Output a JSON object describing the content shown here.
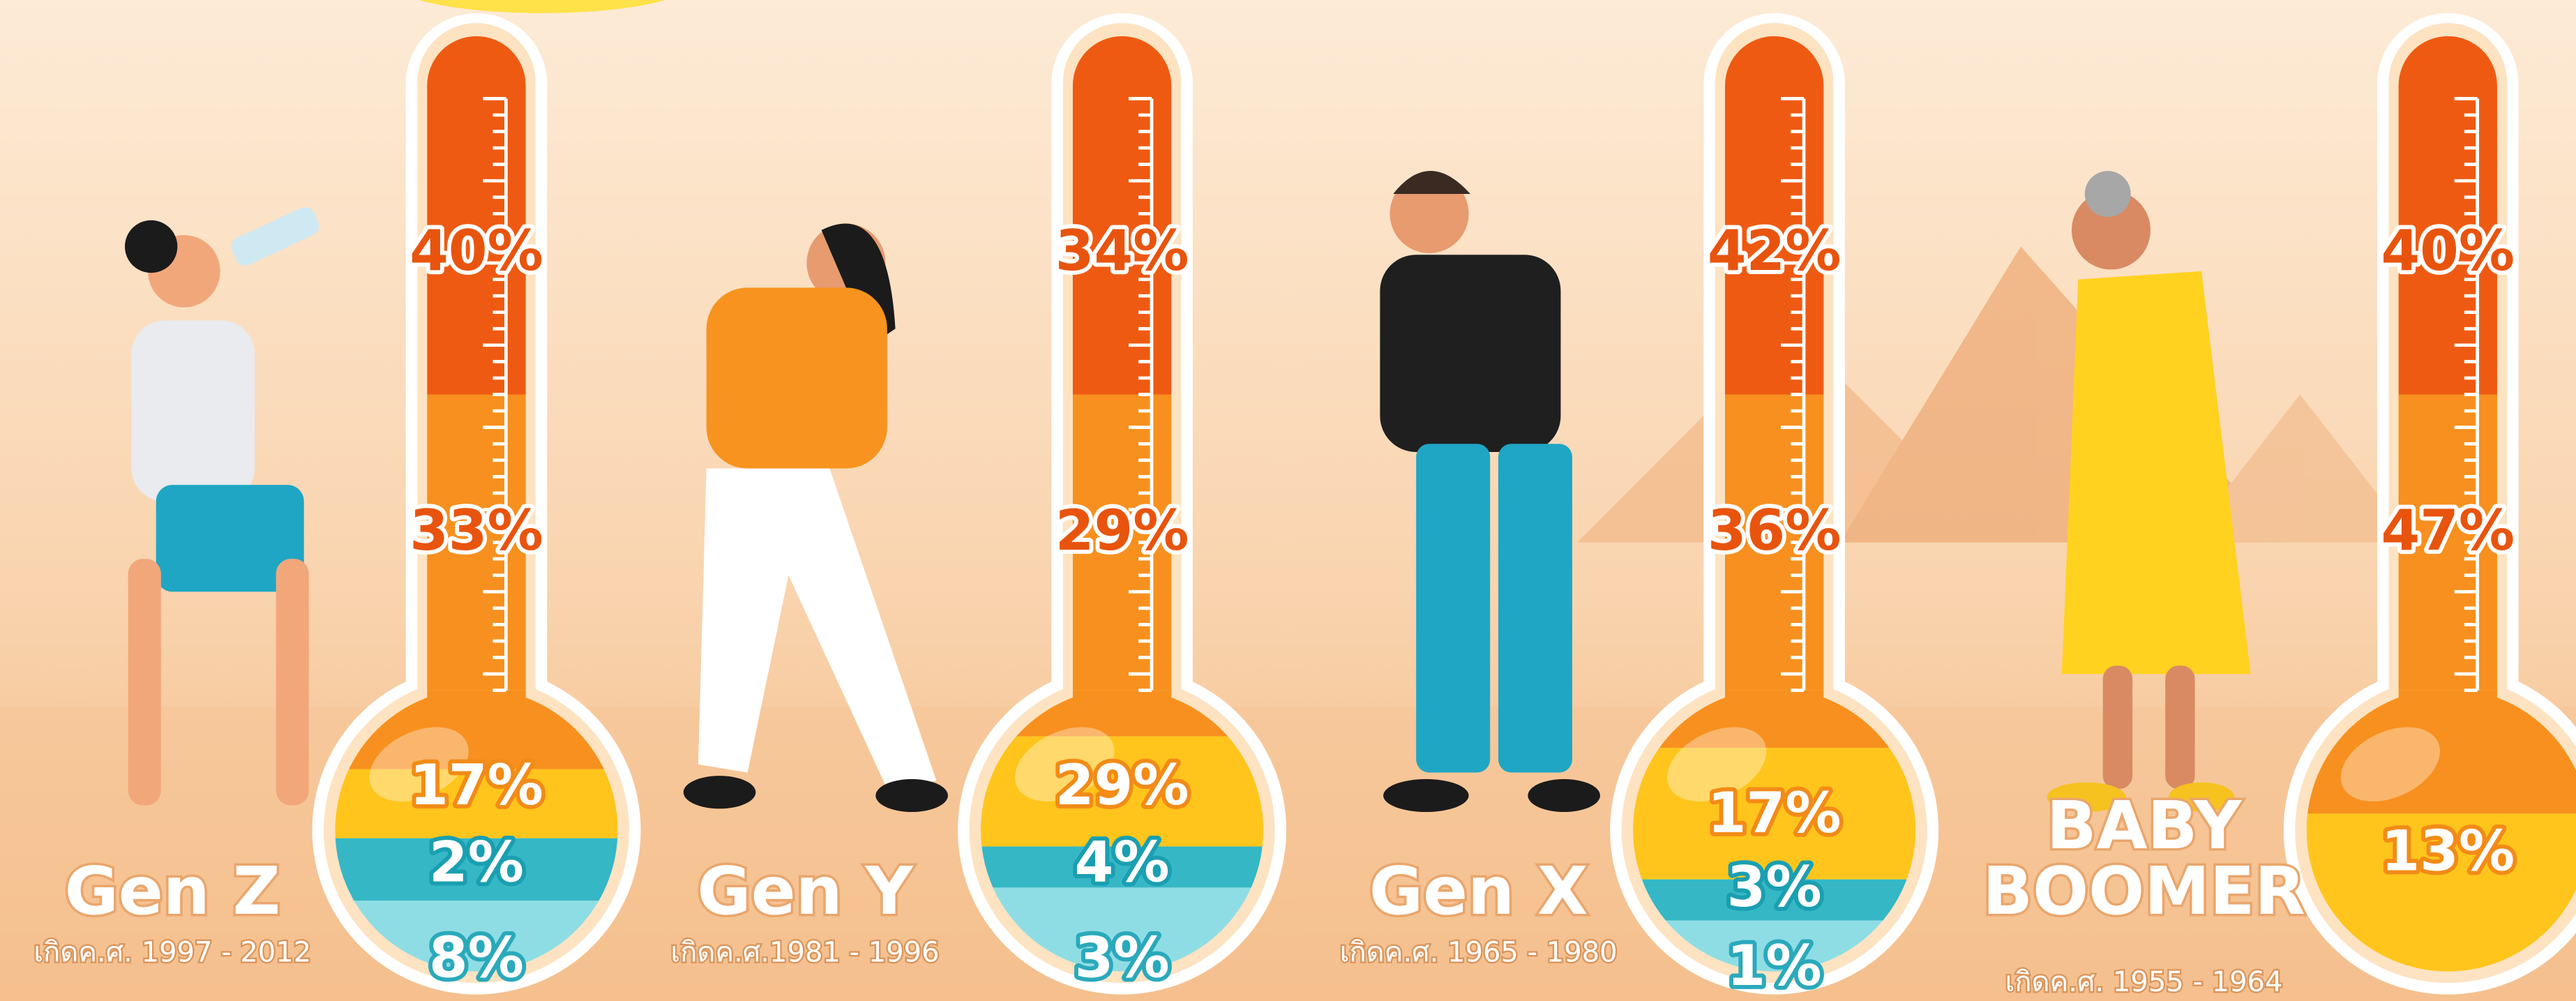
{
  "generations": [
    {
      "name_lines": [
        "Gen Z"
      ],
      "born": "เกิดค.ศ. 1997 - 2012",
      "labels": [
        "40%",
        "33%",
        "17%",
        "2%",
        "8%"
      ]
    },
    {
      "name_lines": [
        "Gen Y"
      ],
      "born": "เกิดค.ศ.1981 - 1996",
      "labels": [
        "34%",
        "29%",
        "29%",
        "4%",
        "3%"
      ]
    },
    {
      "name_lines": [
        "Gen X"
      ],
      "born": "เกิดค.ศ. 1965 - 1980",
      "labels": [
        "42%",
        "36%",
        "17%",
        "3%",
        "1%"
      ]
    },
    {
      "name_lines": [
        "BABY",
        "BOOMER"
      ],
      "born": "เกิดค.ศ. 1955 - 1964",
      "labels": [
        "40%",
        "47%",
        "13%"
      ]
    }
  ]
}
